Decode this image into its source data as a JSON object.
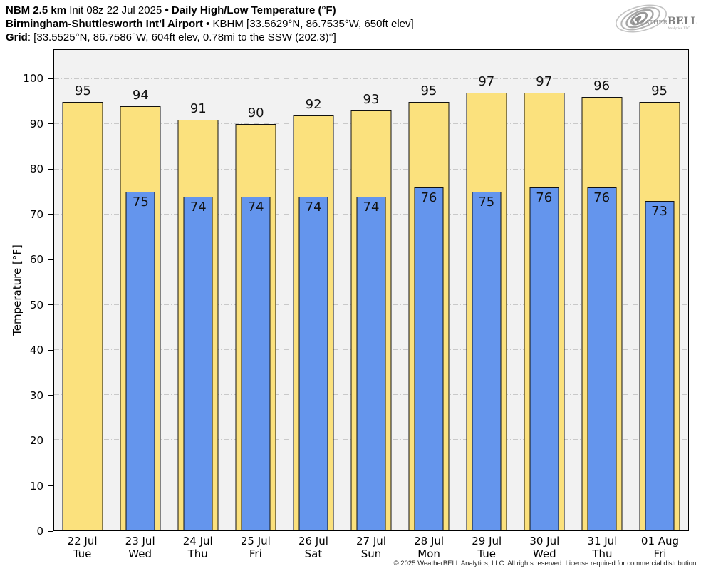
{
  "header": {
    "line1": {
      "bold1": "NBM 2.5 km",
      "normal1": " Init 08z 22 Jul 2025 ",
      "bullet": "•",
      "bold2": " Daily High/Low Temperature (°F)"
    },
    "line2": {
      "bold1": "Birmingham-Shuttlesworth Int’l Airport",
      "normal1": " • KBHM [33.5629°N, 86.7535°W, 650ft elev]"
    },
    "line3": {
      "bold1": "Grid",
      "normal1": ": [33.5525°N, 86.7586°W, 604ft elev, 0.78mi to the SSW (202.3)°]"
    }
  },
  "logo": {
    "word1": "W",
    "word2": "EATHER",
    "word3": "BELL",
    "subtext": "Analytics LLC"
  },
  "chart_data": {
    "type": "bar",
    "title": "Daily High/Low Temperature (°F)",
    "ylabel": "Temperature [°F]",
    "ylim": [
      0,
      106.5
    ],
    "yticks": [
      0,
      10,
      20,
      30,
      40,
      50,
      60,
      70,
      80,
      90,
      100
    ],
    "grid": true,
    "legend_position": "none",
    "categories": [
      "22 Jul",
      "23 Jul",
      "24 Jul",
      "25 Jul",
      "26 Jul",
      "27 Jul",
      "28 Jul",
      "29 Jul",
      "30 Jul",
      "31 Jul",
      "01 Aug"
    ],
    "weekdays": [
      "Tue",
      "Wed",
      "Thu",
      "Fri",
      "Sat",
      "Sun",
      "Mon",
      "Tue",
      "Wed",
      "Thu",
      "Fri"
    ],
    "series": [
      {
        "name": "Daily High",
        "color": "#FBE17D",
        "values": [
          95,
          94,
          91,
          90,
          92,
          93,
          95,
          97,
          97,
          96,
          95
        ]
      },
      {
        "name": "Daily Low",
        "color": "#6495ED",
        "values": [
          null,
          75,
          74,
          74,
          74,
          74,
          76,
          75,
          76,
          76,
          73
        ]
      }
    ]
  },
  "colors": {
    "plot_bg": "#F2F2F2",
    "grid": "#C9C9C9",
    "axis": "#000000",
    "bar_border": "#111111"
  },
  "footer": {
    "copyright": "© 2025 WeatherBELL Analytics, LLC. All rights reserved. License required for commercial distribution."
  }
}
